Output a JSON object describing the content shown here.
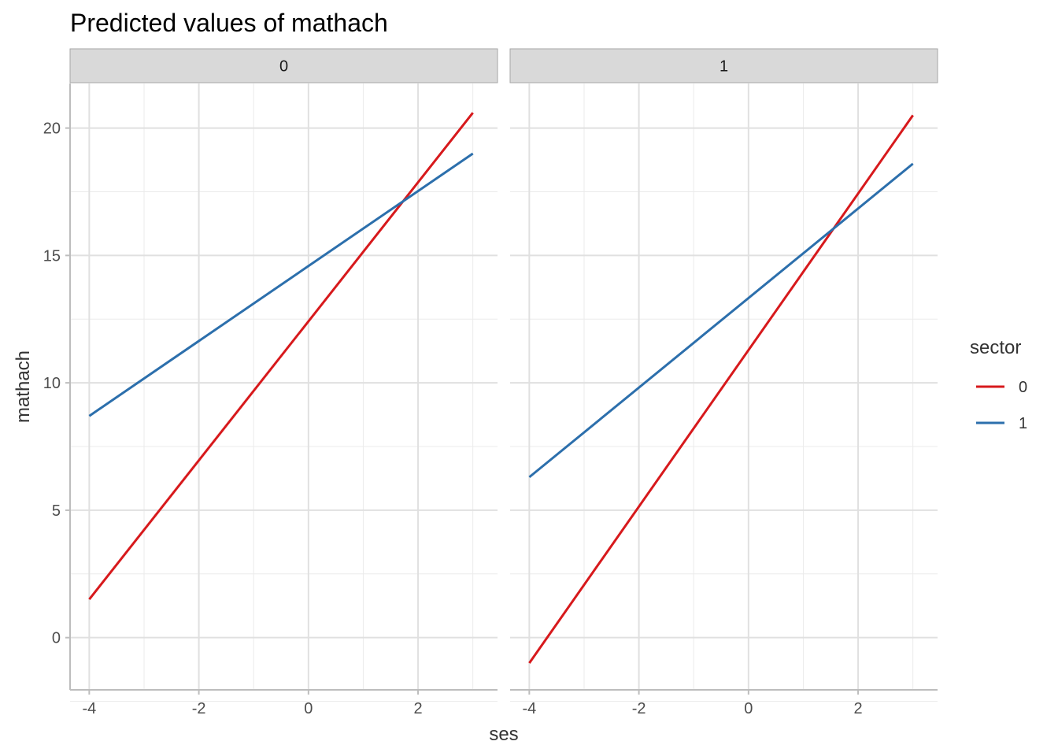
{
  "chart_data": {
    "type": "line",
    "title": "Predicted values of mathach",
    "xlabel": "ses",
    "ylabel": "mathach",
    "xlim": [
      -4.35,
      3.45
    ],
    "ylim": [
      -2.05,
      21.75
    ],
    "x_ticks": [
      -4,
      -2,
      0,
      2
    ],
    "y_ticks": [
      0,
      5,
      10,
      15,
      20
    ],
    "grid": true,
    "legend": {
      "title": "sector",
      "position": "right",
      "entries": [
        "0",
        "1"
      ]
    },
    "colors": {
      "0": "#d7191c",
      "1": "#2c6fac"
    },
    "facets": [
      {
        "label": "0",
        "series": [
          {
            "name": "0",
            "x": [
              -4,
              3
            ],
            "y": [
              1.5,
              20.6
            ]
          },
          {
            "name": "1",
            "x": [
              -4,
              3
            ],
            "y": [
              8.7,
              19.0
            ]
          }
        ]
      },
      {
        "label": "1",
        "series": [
          {
            "name": "0",
            "x": [
              -4,
              3
            ],
            "y": [
              -1.0,
              20.5
            ]
          },
          {
            "name": "1",
            "x": [
              -4,
              3
            ],
            "y": [
              6.3,
              18.6
            ]
          }
        ]
      }
    ]
  }
}
